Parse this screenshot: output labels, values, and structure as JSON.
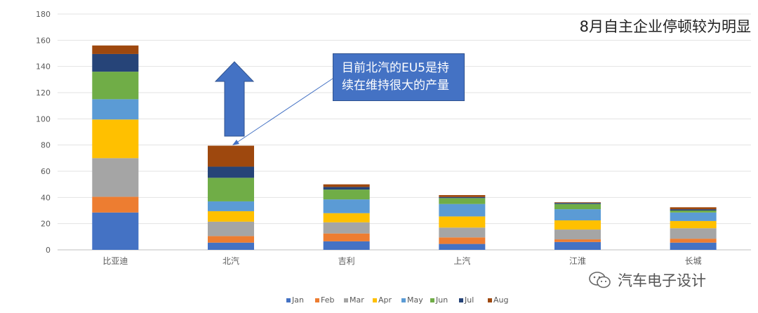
{
  "chart_data": {
    "type": "bar",
    "stacked": true,
    "title": "8月自主企业停顿较为明显",
    "xlabel": "",
    "ylabel": "",
    "ylim": [
      0,
      180
    ],
    "yticks": [
      0,
      20,
      40,
      60,
      80,
      100,
      120,
      140,
      160,
      180
    ],
    "grid": true,
    "legend": "bottom",
    "categories": [
      "比亚迪",
      "北汽",
      "吉利",
      "上汽",
      "江淮",
      "长城"
    ],
    "series": [
      {
        "name": "Jan",
        "color": "#4472c4",
        "values": [
          28.5,
          5.5,
          6.5,
          4.5,
          6.0,
          5.5
        ]
      },
      {
        "name": "Feb",
        "color": "#ed7d31",
        "values": [
          12.0,
          5.0,
          6.0,
          5.0,
          2.0,
          3.0
        ]
      },
      {
        "name": "Mar",
        "color": "#a5a5a5",
        "values": [
          29.5,
          11.0,
          8.5,
          7.5,
          7.5,
          8.0
        ]
      },
      {
        "name": "Apr",
        "color": "#ffc000",
        "values": [
          29.5,
          8.0,
          7.0,
          8.5,
          7.0,
          5.5
        ]
      },
      {
        "name": "May",
        "color": "#5b9bd5",
        "values": [
          15.5,
          7.5,
          10.5,
          9.5,
          8.5,
          6.5
        ]
      },
      {
        "name": "Jun",
        "color": "#70ad47",
        "values": [
          21.0,
          18.0,
          7.5,
          4.5,
          4.0,
          1.5
        ]
      },
      {
        "name": "Jul",
        "color": "#264478",
        "values": [
          13.5,
          8.5,
          2.0,
          0.8,
          0.8,
          1.0
        ]
      },
      {
        "name": "Aug",
        "color": "#9e480e",
        "values": [
          6.5,
          16.0,
          2.0,
          1.5,
          0.5,
          1.5
        ]
      }
    ]
  },
  "annotation": {
    "callout_text_line1": "目前北汽的EU5是持",
    "callout_text_line2": "续在维持很大的产量",
    "arrow_color": "#4472c4"
  },
  "watermark": {
    "text": "汽车电子设计",
    "icon": "wechat-icon"
  }
}
